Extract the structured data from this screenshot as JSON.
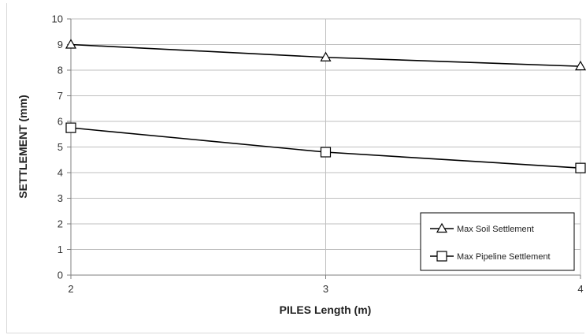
{
  "chart_data": {
    "type": "line",
    "title": "",
    "xlabel": "PILES Length (m)",
    "ylabel": "SETTLEMENT (mm)",
    "x": [
      2,
      3,
      4
    ],
    "xlim": [
      2,
      4
    ],
    "ylim": [
      0,
      10
    ],
    "yticks": [
      0,
      1,
      2,
      3,
      4,
      5,
      6,
      7,
      8,
      9,
      10
    ],
    "xticks": [
      2,
      3,
      4
    ],
    "grid": true,
    "legend_position": "bottom-right",
    "series": [
      {
        "name": "Max Soil Settlement",
        "marker": "triangle",
        "values": [
          9.0,
          8.5,
          8.15
        ]
      },
      {
        "name": "Max Pipeline Settlement",
        "marker": "square",
        "values": [
          5.75,
          4.8,
          4.18
        ]
      }
    ],
    "colors": {
      "line": "#000000",
      "grid": "#bfbfbf",
      "marker_fill": "#ffffff"
    }
  }
}
